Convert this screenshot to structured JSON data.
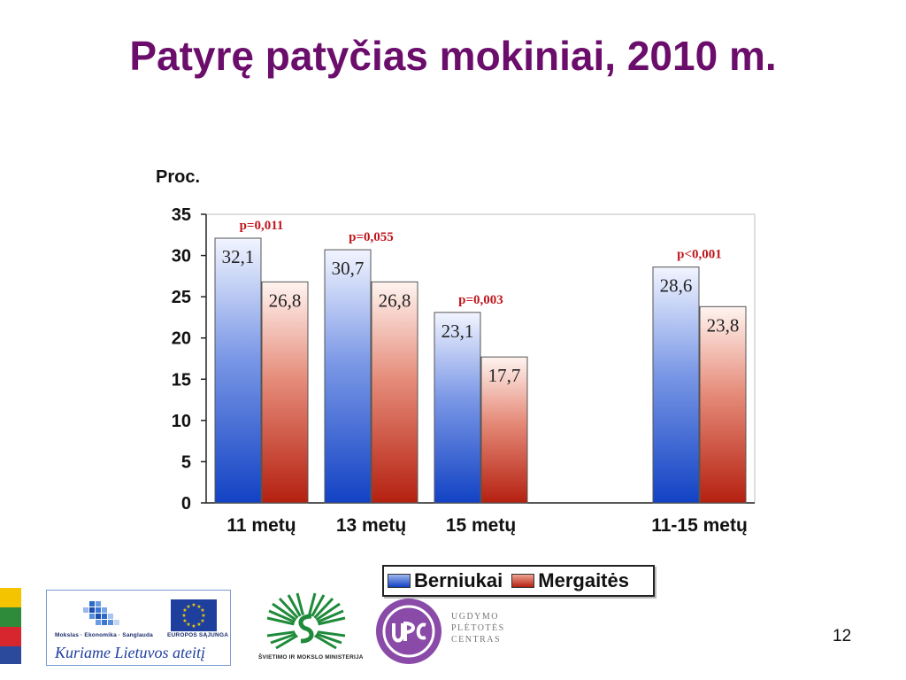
{
  "slide": {
    "title": "Patyrę patyčias mokiniai,  2010 m.",
    "page_number": "12"
  },
  "chart_data": {
    "type": "bar",
    "ylabel": "Proc.",
    "ylim": [
      0,
      35
    ],
    "yticks": [
      0,
      5,
      10,
      15,
      20,
      25,
      30,
      35
    ],
    "grid": false,
    "legend_position": "bottom",
    "categories": [
      "11 metų",
      "13 metų",
      "15 metų",
      "11-15 metų"
    ],
    "series": [
      {
        "name": "Berniukai",
        "values": [
          32.1,
          30.7,
          23.1,
          28.6
        ],
        "value_labels": [
          "32,1",
          "30,7",
          "23,1",
          "28,6"
        ],
        "color": "#2f5fd0"
      },
      {
        "name": "Mergaitės",
        "values": [
          26.8,
          26.8,
          17.7,
          23.8
        ],
        "value_labels": [
          "26,8",
          "26,8",
          "17,7",
          "23,8"
        ],
        "color": "#c0392b"
      }
    ],
    "annotations": [
      "p=0,011",
      "p=0,055",
      "p=0,003",
      "p<0,001"
    ],
    "annotation_color": "#c0171e"
  },
  "logos": {
    "partner_top_left": "Mokslas · Ekonomika · Sanglauda",
    "partner_top_right": "EUROPOS SĄJUNGA",
    "partner_slogan": "Kuriame Lietuvos ateitį",
    "ministry": "ŠVIETIMO IR MOKSLO MINISTERIJA",
    "upc_lines": [
      "UGDYMO",
      "PLĖTOTĖS",
      "CENTRAS"
    ]
  }
}
